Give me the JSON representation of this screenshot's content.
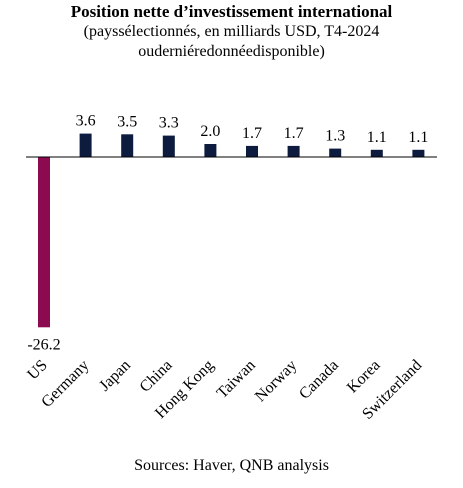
{
  "chart_data": {
    "type": "bar",
    "title": "Position nette d’investissement international",
    "subtitle_line1": "(payssélectionnés, en milliards USD, T4-2024",
    "subtitle_line2": "ouderniéredonnéedisponible)",
    "categories": [
      "US",
      "Germany",
      "Japan",
      "China",
      "Hong Kong",
      "Taiwan",
      "Norway",
      "Canada",
      "Korea",
      "Switzerland"
    ],
    "values": [
      -26.2,
      3.6,
      3.5,
      3.3,
      2.0,
      1.7,
      1.7,
      1.3,
      1.1,
      1.1
    ],
    "value_labels": [
      "-26.2",
      "3.6",
      "3.5",
      "3.3",
      "2.0",
      "1.7",
      "1.7",
      "1.3",
      "1.1",
      "1.1"
    ],
    "colors": {
      "negative": "#8B0A50",
      "positive": "#0D1B3E"
    },
    "grid": false,
    "legend": "none"
  },
  "source": "Sources: Haver, QNB analysis"
}
